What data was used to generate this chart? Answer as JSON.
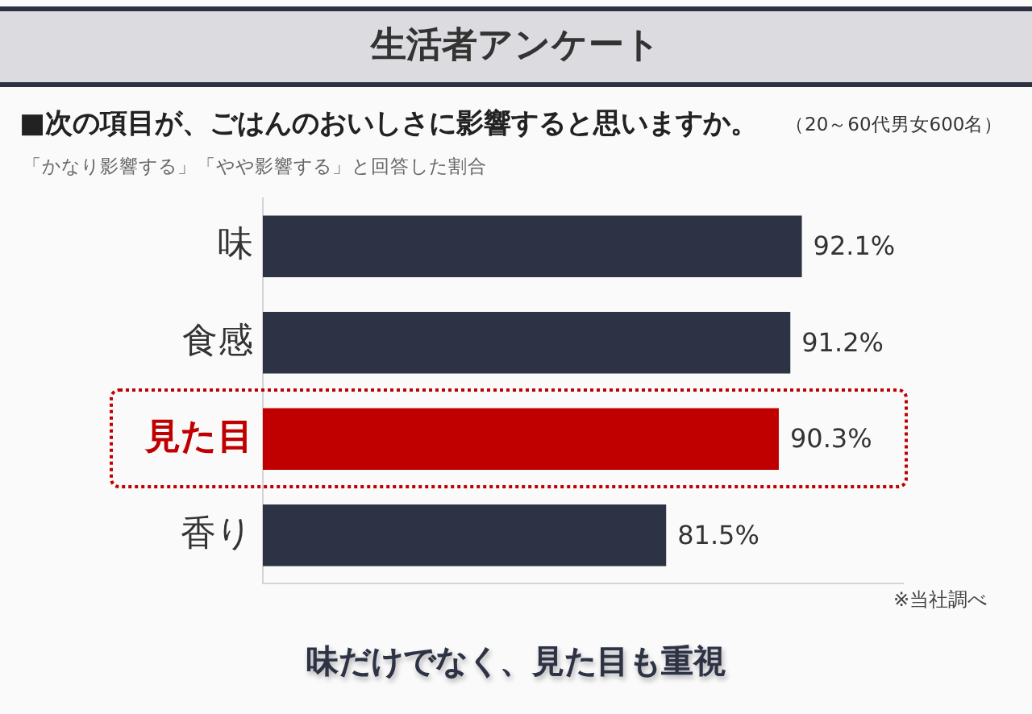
{
  "chart_data": {
    "type": "bar",
    "orientation": "horizontal",
    "title": "生活者アンケート",
    "subtitle": "■次の項目が、ごはんのおいしさに影響すると思いますか。",
    "annotations": [
      "（20～60代男女600名）",
      "「かなり影響する」「やや影響する」と回答した割合",
      "※当社調べ",
      "味だけでなく、見た目も重視"
    ],
    "categories": [
      "味",
      "食感",
      "見た目",
      "香り"
    ],
    "values": [
      92.1,
      91.2,
      90.3,
      81.5
    ],
    "value_labels": [
      "92.1%",
      "91.2%",
      "90.3%",
      "81.5%"
    ],
    "color": "#2d3345",
    "colors": [
      "#2d3345",
      "#2d3345",
      "#c00000",
      "#2d3345"
    ],
    "xlim": [
      50,
      100
    ],
    "tick_labels": "y"
  }
}
